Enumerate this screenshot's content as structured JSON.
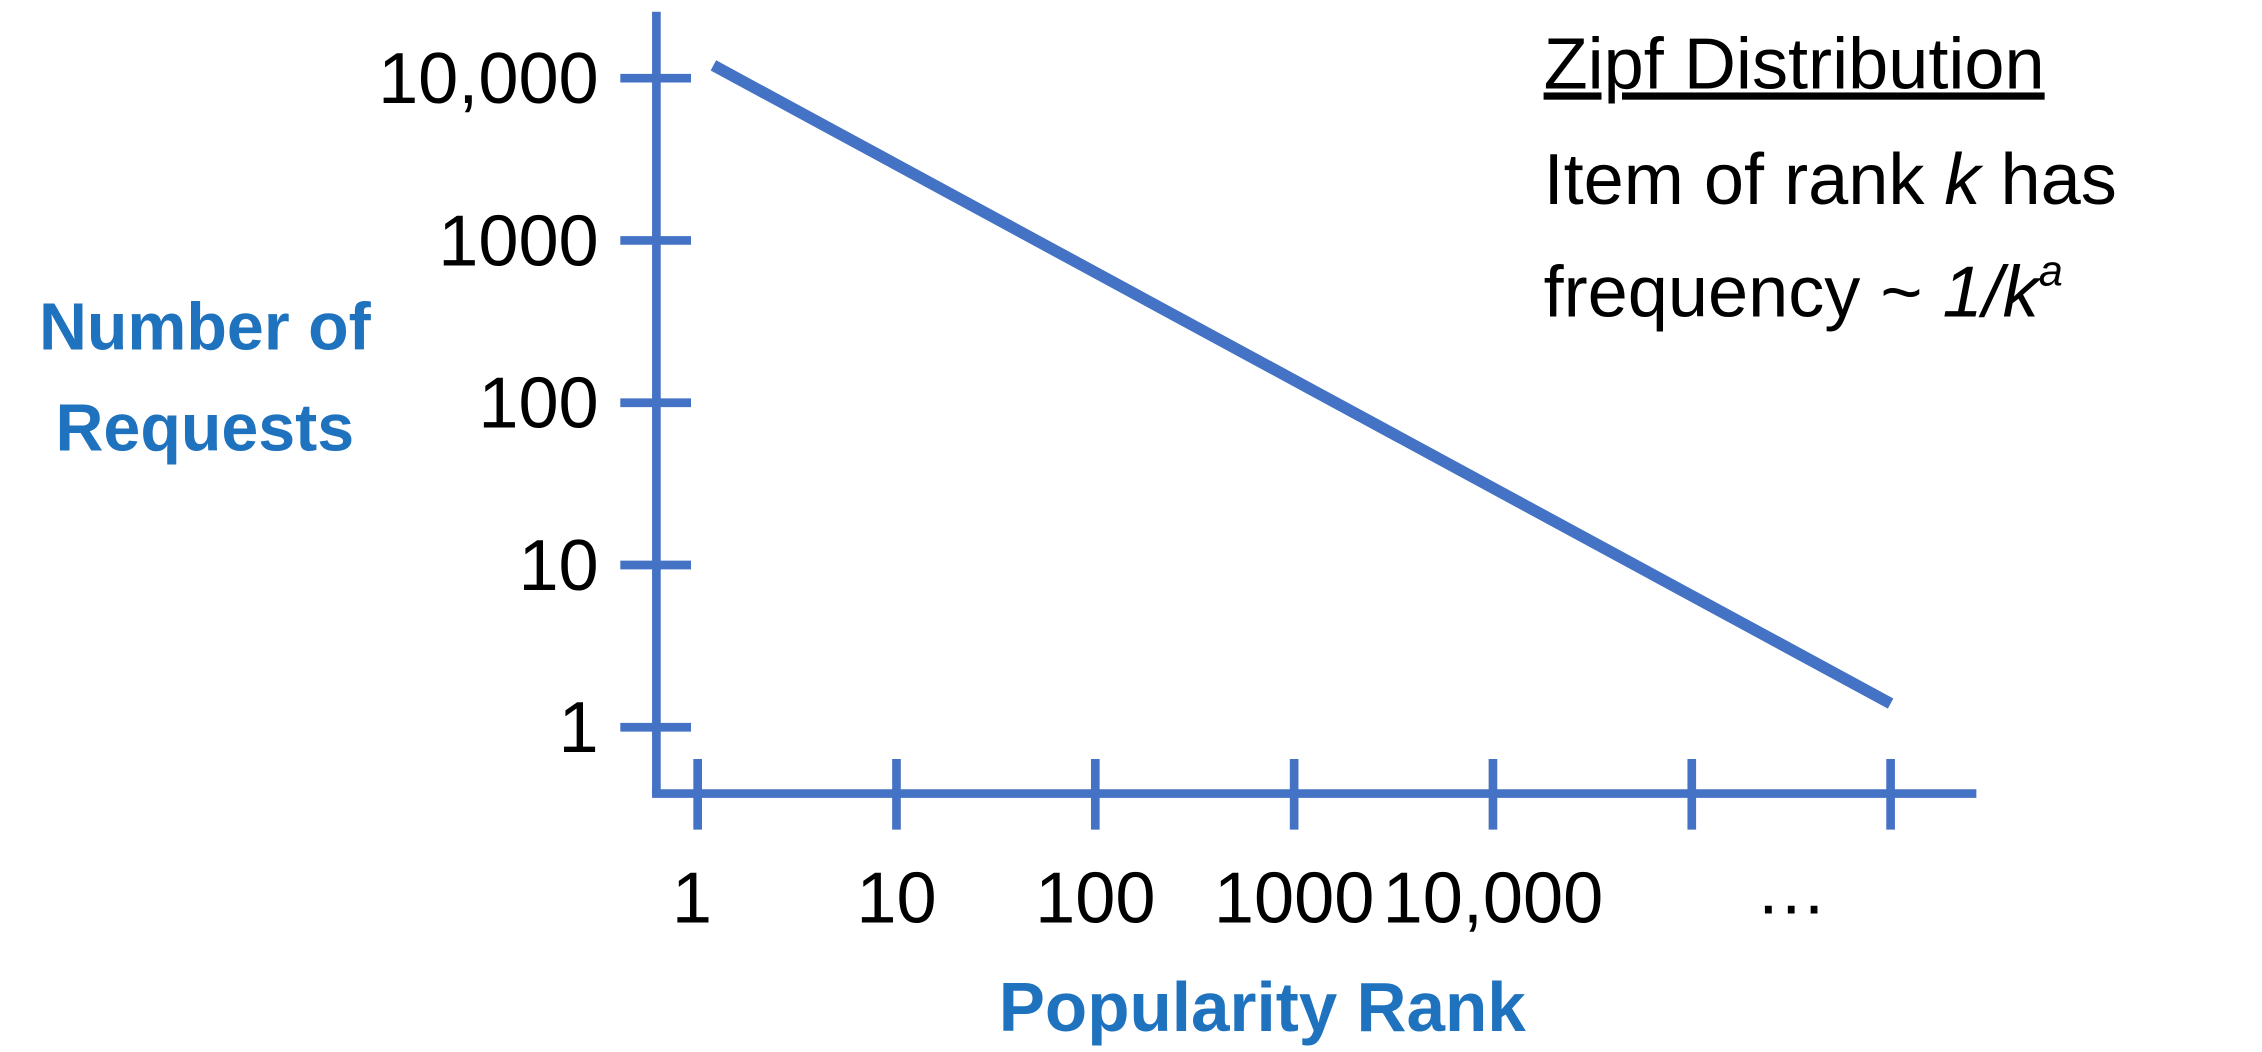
{
  "chart_data": {
    "type": "line",
    "xlabel": "Popularity Rank",
    "ylabel": [
      "Number of",
      "Requests"
    ],
    "x": [
      1.2,
      1000000
    ],
    "series": [
      {
        "color": "#4472c4",
        "values": [
          12000,
          1.4
        ]
      }
    ],
    "xscale": "log",
    "yscale": "log",
    "xlim": [
      0.62,
      2700000
    ],
    "ylim": [
      0.39,
      25700
    ],
    "xticks": [
      1,
      10,
      100,
      1000,
      {
        "value": 10000,
        "label": "10,000"
      }
    ],
    "xticks_unlabeled": [
      100000,
      1000000
    ],
    "x_continuation": "…",
    "yticks": [
      1,
      10,
      100,
      1000,
      {
        "value": 10000,
        "label": "10,000"
      }
    ],
    "axis_color": "#4472c4",
    "label_color": "#1f72bd",
    "annotation": {
      "title": "Zipf Distribution",
      "lines": [
        [
          "Item of rank ",
          "k",
          " has"
        ],
        [
          "frequency ~ ",
          "1/k",
          "a"
        ]
      ]
    }
  }
}
